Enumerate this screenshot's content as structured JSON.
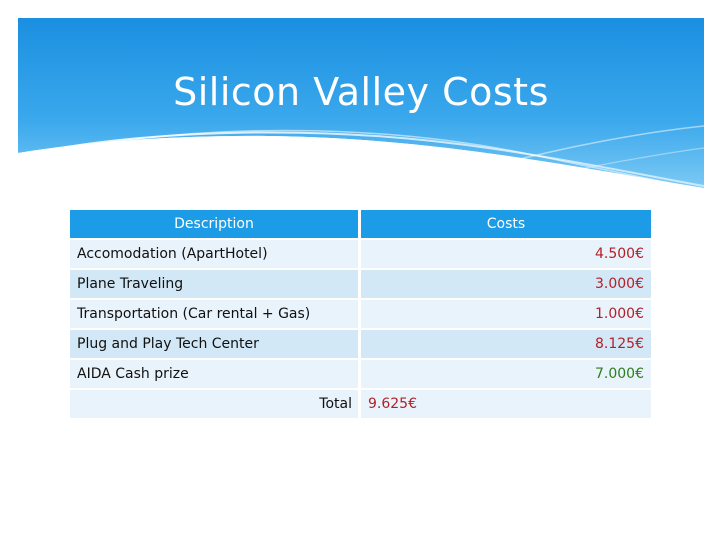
{
  "slide": {
    "title": "Silicon Valley Costs",
    "colors": {
      "banner_top": "#1f95e4",
      "banner_bottom": "#6fc3f3",
      "header": "#1c9be6",
      "row_dark": "#d2e8f7",
      "row_light": "#e9f3fb",
      "value_red": "#b3202a",
      "value_green": "#2e7d1e"
    }
  },
  "table": {
    "headers": {
      "description": "Description",
      "costs": "Costs"
    },
    "rows": [
      {
        "description": "Accomodation (ApartHotel)",
        "cost": "4.500€",
        "color": "red"
      },
      {
        "description": "Plane Traveling",
        "cost": "3.000€",
        "color": "red"
      },
      {
        "description": "Transportation (Car rental + Gas)",
        "cost": "1.000€",
        "color": "red"
      },
      {
        "description": "Plug and Play Tech Center",
        "cost": "8.125€",
        "color": "red"
      },
      {
        "description": "AIDA Cash prize",
        "cost": "7.000€",
        "color": "green"
      }
    ],
    "total": {
      "label": "Total",
      "value": "9.625€"
    }
  }
}
